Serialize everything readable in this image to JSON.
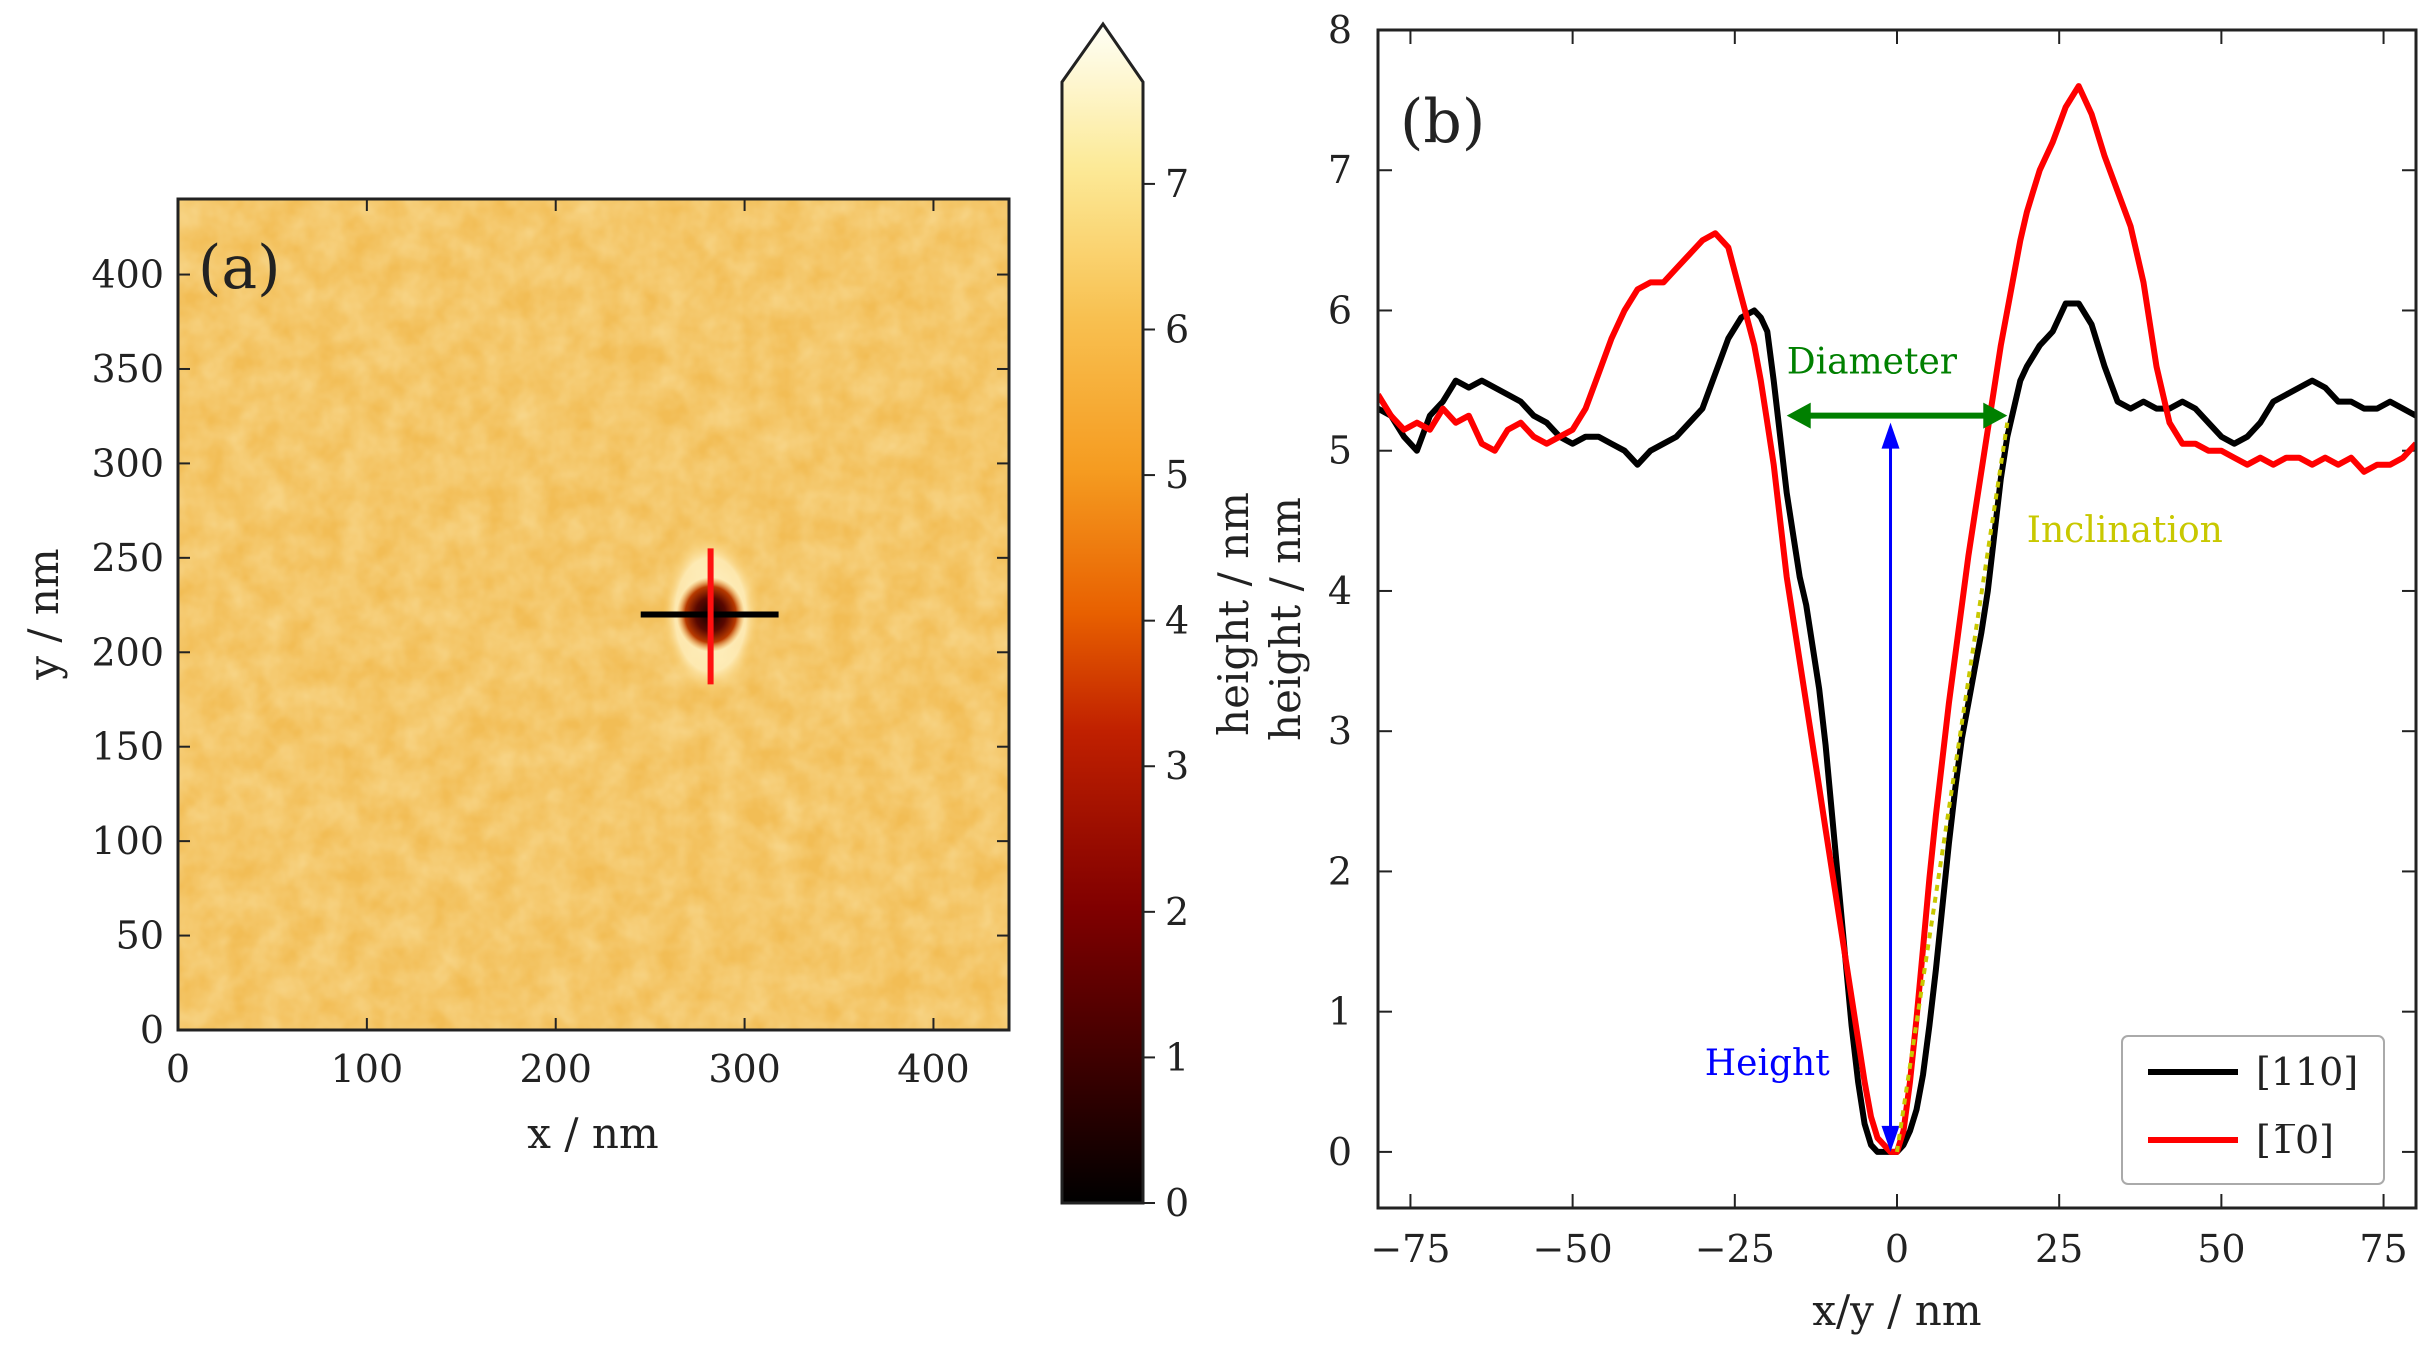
{
  "chart_data": [
    {
      "type": "heatmap",
      "panel_label": "(a)",
      "xlabel": "x / nm",
      "ylabel": "y / nm",
      "xlim": [
        0,
        440
      ],
      "ylim": [
        0,
        440
      ],
      "x_ticks": [
        0,
        100,
        200,
        300,
        400
      ],
      "y_ticks": [
        0,
        50,
        100,
        150,
        200,
        250,
        300,
        350,
        400
      ],
      "colormap": "afmhot",
      "colorbar": {
        "label": "height / nm",
        "range": [
          0,
          7.7
        ],
        "ticks": [
          0,
          1,
          2,
          3,
          4,
          5,
          6,
          7
        ],
        "extend": "max"
      },
      "background_height_nm": 5.2,
      "pit": {
        "center_x": 282,
        "center_y": 220,
        "diameter_nm": 36,
        "min_height_nm": 0
      },
      "profile_lines": [
        {
          "name": "[110]",
          "color": "#000000",
          "orientation": "horizontal",
          "from": [
            245,
            220
          ],
          "to": [
            318,
            220
          ]
        },
        {
          "name": "[1-10]",
          "color": "#ff0000",
          "orientation": "vertical",
          "from": [
            282,
            183
          ],
          "to": [
            282,
            255
          ]
        }
      ]
    },
    {
      "type": "line",
      "panel_label": "(b)",
      "xlabel": "x/y / nm",
      "ylabel": "height / nm",
      "xlim": [
        -80,
        80
      ],
      "ylim": [
        -0.4,
        8
      ],
      "x_ticks": [
        -75,
        -50,
        -25,
        0,
        25,
        50,
        75
      ],
      "x_tick_labels": [
        "−75",
        "−50",
        "−25",
        "0",
        "25",
        "50",
        "75"
      ],
      "y_ticks": [
        0,
        1,
        2,
        3,
        4,
        5,
        6,
        7,
        8
      ],
      "series": [
        {
          "name": "[110]",
          "color": "#000000",
          "x": [
            -80,
            -78,
            -76,
            -74,
            -72,
            -70,
            -68,
            -66,
            -64,
            -62,
            -60,
            -58,
            -56,
            -54,
            -52,
            -50,
            -48,
            -46,
            -44,
            -42,
            -40,
            -38,
            -36,
            -34,
            -32,
            -30,
            -28,
            -26,
            -24,
            -22,
            -21,
            -20,
            -19,
            -18,
            -17,
            -16,
            -15,
            -14,
            -13,
            -12,
            -11,
            -10,
            -9,
            -8,
            -7,
            -6,
            -5,
            -4,
            -3,
            -2,
            -1,
            0,
            1,
            2,
            3,
            4,
            5,
            6,
            7,
            8,
            9,
            10,
            11,
            12,
            13,
            14,
            15,
            16,
            17,
            18,
            19,
            20,
            22,
            24,
            26,
            28,
            30,
            32,
            34,
            36,
            38,
            40,
            42,
            44,
            46,
            48,
            50,
            52,
            54,
            56,
            58,
            60,
            62,
            64,
            66,
            68,
            70,
            72,
            74,
            76,
            78,
            80
          ],
          "y": [
            5.3,
            5.25,
            5.1,
            5.0,
            5.25,
            5.35,
            5.5,
            5.45,
            5.5,
            5.45,
            5.4,
            5.35,
            5.25,
            5.2,
            5.1,
            5.05,
            5.1,
            5.1,
            5.05,
            5.0,
            4.9,
            5.0,
            5.05,
            5.1,
            5.2,
            5.3,
            5.55,
            5.8,
            5.95,
            6.0,
            5.95,
            5.85,
            5.5,
            5.1,
            4.7,
            4.4,
            4.1,
            3.9,
            3.6,
            3.3,
            2.9,
            2.4,
            1.9,
            1.4,
            0.9,
            0.5,
            0.2,
            0.05,
            0.0,
            0.0,
            0.0,
            0.0,
            0.05,
            0.15,
            0.3,
            0.55,
            0.9,
            1.3,
            1.75,
            2.2,
            2.6,
            2.95,
            3.2,
            3.45,
            3.7,
            4.0,
            4.4,
            4.8,
            5.1,
            5.3,
            5.5,
            5.6,
            5.75,
            5.85,
            6.05,
            6.05,
            5.9,
            5.6,
            5.35,
            5.3,
            5.35,
            5.3,
            5.3,
            5.35,
            5.3,
            5.2,
            5.1,
            5.05,
            5.1,
            5.2,
            5.35,
            5.4,
            5.45,
            5.5,
            5.45,
            5.35,
            5.35,
            5.3,
            5.3,
            5.35,
            5.3,
            5.25
          ]
        },
        {
          "name": "[1̅0]",
          "color": "#ff0000",
          "x": [
            -80,
            -78,
            -76,
            -74,
            -72,
            -70,
            -68,
            -66,
            -64,
            -62,
            -60,
            -58,
            -56,
            -54,
            -52,
            -50,
            -48,
            -46,
            -44,
            -42,
            -40,
            -38,
            -36,
            -34,
            -32,
            -30,
            -28,
            -26,
            -24,
            -22,
            -21,
            -20,
            -19,
            -18,
            -17,
            -16,
            -15,
            -14,
            -13,
            -12,
            -11,
            -10,
            -9,
            -8,
            -7,
            -6,
            -5,
            -4,
            -3,
            -2,
            -1,
            0,
            1,
            2,
            3,
            4,
            5,
            6,
            7,
            8,
            9,
            10,
            11,
            12,
            13,
            14,
            15,
            16,
            17,
            18,
            19,
            20,
            21,
            22,
            24,
            26,
            28,
            30,
            32,
            34,
            36,
            38,
            40,
            42,
            44,
            46,
            48,
            50,
            52,
            54,
            56,
            58,
            60,
            62,
            64,
            66,
            68,
            70,
            72,
            74,
            76,
            78,
            80
          ],
          "y": [
            5.4,
            5.25,
            5.15,
            5.2,
            5.15,
            5.3,
            5.2,
            5.25,
            5.05,
            5.0,
            5.15,
            5.2,
            5.1,
            5.05,
            5.1,
            5.15,
            5.3,
            5.55,
            5.8,
            6.0,
            6.15,
            6.2,
            6.2,
            6.3,
            6.4,
            6.5,
            6.55,
            6.45,
            6.1,
            5.75,
            5.5,
            5.2,
            4.9,
            4.5,
            4.1,
            3.8,
            3.5,
            3.2,
            2.9,
            2.6,
            2.3,
            2.0,
            1.7,
            1.4,
            1.1,
            0.8,
            0.5,
            0.25,
            0.1,
            0.05,
            0.0,
            0.0,
            0.15,
            0.5,
            0.95,
            1.45,
            1.95,
            2.4,
            2.8,
            3.2,
            3.55,
            3.9,
            4.25,
            4.55,
            4.85,
            5.15,
            5.45,
            5.75,
            6.0,
            6.25,
            6.5,
            6.7,
            6.85,
            7.0,
            7.2,
            7.45,
            7.6,
            7.4,
            7.1,
            6.85,
            6.6,
            6.2,
            5.6,
            5.2,
            5.05,
            5.05,
            5.0,
            5.0,
            4.95,
            4.9,
            4.95,
            4.9,
            4.95,
            4.95,
            4.9,
            4.95,
            4.9,
            4.95,
            4.85,
            4.9,
            4.9,
            4.95,
            5.05
          ]
        }
      ],
      "annotations": [
        {
          "text": "Diameter",
          "color": "#008000",
          "kind": "double-arrow",
          "x_from": -17,
          "x_to": 17,
          "y": 5.25,
          "label_at": [
            -17,
            5.55
          ]
        },
        {
          "text": "Height",
          "color": "#0000ff",
          "kind": "arrow",
          "x": -1,
          "y_from": 0.0,
          "y_to": 5.2,
          "label_at": [
            -20,
            0.55
          ]
        },
        {
          "text": "Inclination",
          "color": "#c8c800",
          "kind": "dotted-line",
          "from": [
            0,
            0.0
          ],
          "to": [
            17,
            5.2
          ],
          "label_at": [
            20,
            4.35
          ]
        }
      ],
      "legend": {
        "position": "lower-right",
        "entries": [
          "[110]",
          "[1̅0]"
        ]
      }
    }
  ]
}
